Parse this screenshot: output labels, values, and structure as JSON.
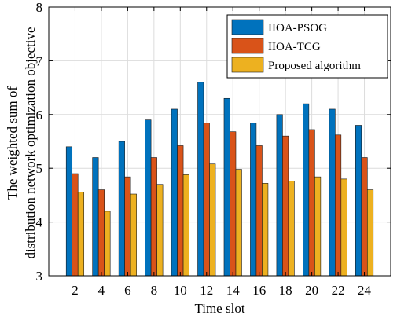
{
  "chart_data": {
    "type": "bar",
    "title": "",
    "xlabel": "Time slot",
    "ylabel_lines": [
      "The weighted sum of",
      "distribution network optimization objective"
    ],
    "categories": [
      "2",
      "4",
      "6",
      "8",
      "10",
      "12",
      "14",
      "16",
      "18",
      "20",
      "22",
      "24"
    ],
    "ylim": [
      3,
      8
    ],
    "yticks": [
      "3",
      "4",
      "5",
      "6",
      "7",
      "8"
    ],
    "grid": true,
    "legend_position": "top-right",
    "series": [
      {
        "name": "IIOA-PSOG",
        "color": "#0072BD",
        "values": [
          5.4,
          5.2,
          5.5,
          5.9,
          6.1,
          6.6,
          6.3,
          5.84,
          6.0,
          6.2,
          6.1,
          5.8
        ]
      },
      {
        "name": "IIOA-TCG",
        "color": "#D95319",
        "values": [
          4.9,
          4.6,
          4.84,
          5.2,
          5.42,
          5.84,
          5.68,
          5.42,
          5.6,
          5.72,
          5.62,
          5.2
        ]
      },
      {
        "name": "Proposed algorithm",
        "color": "#EDB120",
        "values": [
          4.56,
          4.2,
          4.52,
          4.7,
          4.88,
          5.08,
          4.98,
          4.72,
          4.76,
          4.84,
          4.8,
          4.6
        ]
      }
    ]
  }
}
